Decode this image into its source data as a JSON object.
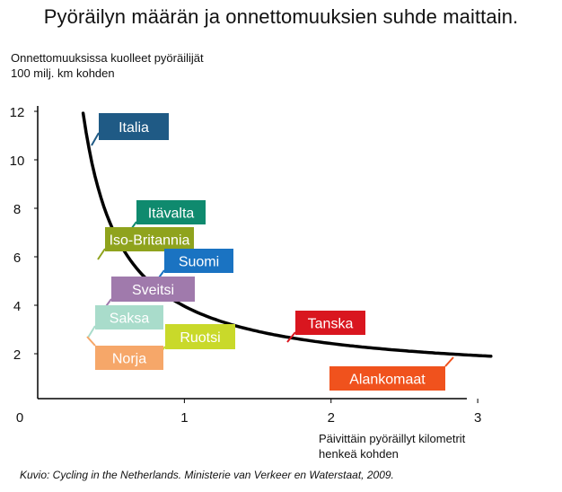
{
  "title": "Pyöräilyn määrän ja onnettomuuksien suhde maittain.",
  "chart_data": {
    "type": "scatter",
    "ylabel_lines": [
      "Onnettomuuksissa kuolleet pyöräilijät",
      "100 milj. km kohden"
    ],
    "xlabel_lines": [
      "Päivittäin pyöräillyt kilometrit",
      "henkeä kohden"
    ],
    "xlim": [
      0,
      3.1
    ],
    "ylim": [
      0,
      12.3
    ],
    "x_ticks": [
      0,
      1,
      2,
      3
    ],
    "y_ticks": [
      2,
      4,
      6,
      8,
      10,
      12
    ],
    "grid": false,
    "legend": "none",
    "trend_curve": true,
    "points": [
      {
        "label": "Italia",
        "x": 0.5,
        "y": 10.6,
        "color": "#1f5a85"
      },
      {
        "label": "Itävalta",
        "x": 0.8,
        "y": 7.1,
        "color": "#0f8a6e"
      },
      {
        "label": "Iso-Britannia",
        "x": 0.6,
        "y": 6.0,
        "color": "#8fa31d"
      },
      {
        "label": "Suomi",
        "x": 1.0,
        "y": 5.5,
        "color": "#1a73c2"
      },
      {
        "label": "Sveitsi",
        "x": 0.6,
        "y": 4.7,
        "color": "#a07aac"
      },
      {
        "label": "Saksa",
        "x": 0.5,
        "y": 3.5,
        "color": "#a9dccb"
      },
      {
        "label": "Ruotsi",
        "x": 1.0,
        "y": 2.9,
        "color": "#c9d92a"
      },
      {
        "label": "Norja",
        "x": 0.5,
        "y": 2.0,
        "color": "#f6a769"
      },
      {
        "label": "Tanska",
        "x": 1.85,
        "y": 3.0,
        "color": "#d9161f"
      },
      {
        "label": "Alankomaat",
        "x": 2.98,
        "y": 1.5,
        "color": "#f0521d"
      }
    ]
  },
  "source": "Kuvio: Cycling in the Netherlands. Ministerie van Verkeer en Waterstaat, 2009."
}
